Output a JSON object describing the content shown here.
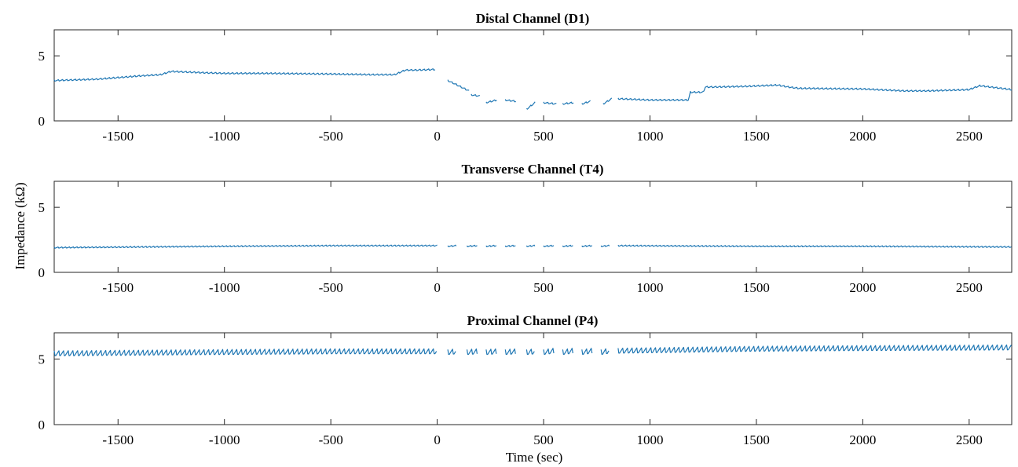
{
  "colors": {
    "trace": "#1f77b4",
    "axes": "#262626"
  },
  "shared": {
    "ylabel": "Impedance (kΩ)",
    "xlabel": "Time (sec)"
  },
  "chart_data": [
    {
      "type": "line",
      "title": "Distal Channel (D1)",
      "xlim": [
        -1800,
        2700
      ],
      "ylim": [
        0,
        7
      ],
      "xticks": [
        -1500,
        -1000,
        -500,
        0,
        500,
        1000,
        1500,
        2000,
        2500
      ],
      "yticks": [
        0,
        5
      ],
      "grid": false,
      "series": [
        {
          "segments": [
            {
              "x": [
                -1800,
                -1600,
                -1400,
                -1300,
                -1250,
                -1100,
                -1000,
                -800,
                -500,
                -300,
                -200,
                -150,
                -100,
                -10
              ],
              "y": [
                3.1,
                3.2,
                3.45,
                3.55,
                3.8,
                3.7,
                3.65,
                3.65,
                3.6,
                3.55,
                3.55,
                3.9,
                3.9,
                3.95
              ]
            },
            {
              "x": [
                50,
                150
              ],
              "y": [
                3.1,
                2.3
              ]
            },
            {
              "x": [
                160,
                200
              ],
              "y": [
                2.0,
                1.9
              ]
            },
            {
              "x": [
                230,
                280
              ],
              "y": [
                1.4,
                1.6
              ]
            },
            {
              "x": [
                320,
                370
              ],
              "y": [
                1.6,
                1.5
              ]
            },
            {
              "x": [
                420,
                460
              ],
              "y": [
                0.9,
                1.4
              ]
            },
            {
              "x": [
                500,
                560
              ],
              "y": [
                1.4,
                1.3
              ]
            },
            {
              "x": [
                590,
                640
              ],
              "y": [
                1.3,
                1.4
              ]
            },
            {
              "x": [
                680,
                720
              ],
              "y": [
                1.3,
                1.5
              ]
            },
            {
              "x": [
                780,
                820
              ],
              "y": [
                1.3,
                1.7
              ]
            },
            {
              "x": [
                850,
                1000,
                1180,
                1190,
                1250,
                1260,
                1300,
                1450,
                1600,
                1650,
                1700,
                2000,
                2200,
                2300,
                2500,
                2550,
                2700
              ],
              "y": [
                1.7,
                1.6,
                1.6,
                2.2,
                2.2,
                2.6,
                2.6,
                2.65,
                2.75,
                2.6,
                2.5,
                2.45,
                2.3,
                2.3,
                2.4,
                2.7,
                2.4
              ]
            }
          ],
          "oscillation": {
            "period": 20,
            "amplitude": 0.12
          }
        }
      ]
    },
    {
      "type": "line",
      "title": "Transverse Channel (T4)",
      "xlim": [
        -1800,
        2700
      ],
      "ylim": [
        0,
        7
      ],
      "xticks": [
        -1500,
        -1000,
        -500,
        0,
        500,
        1000,
        1500,
        2000,
        2500
      ],
      "yticks": [
        0,
        5
      ],
      "grid": false,
      "series": [
        {
          "segments": [
            {
              "x": [
                -1800,
                -1000,
                -500,
                0
              ],
              "y": [
                1.9,
                2.0,
                2.05,
                2.05
              ]
            },
            {
              "x": [
                50,
                90
              ],
              "y": [
                2.0,
                2.05
              ]
            },
            {
              "x": [
                140,
                190
              ],
              "y": [
                2.0,
                2.05
              ]
            },
            {
              "x": [
                230,
                280
              ],
              "y": [
                2.0,
                2.05
              ]
            },
            {
              "x": [
                320,
                370
              ],
              "y": [
                2.0,
                2.05
              ]
            },
            {
              "x": [
                420,
                460
              ],
              "y": [
                2.0,
                2.05
              ]
            },
            {
              "x": [
                500,
                550
              ],
              "y": [
                2.0,
                2.05
              ]
            },
            {
              "x": [
                590,
                640
              ],
              "y": [
                2.0,
                2.05
              ]
            },
            {
              "x": [
                680,
                730
              ],
              "y": [
                2.0,
                2.05
              ]
            },
            {
              "x": [
                770,
                810
              ],
              "y": [
                2.0,
                2.05
              ]
            },
            {
              "x": [
                850,
                1500,
                2000,
                2700
              ],
              "y": [
                2.05,
                2.0,
                2.0,
                1.95
              ]
            }
          ],
          "oscillation": {
            "period": 18,
            "amplitude": 0.1
          }
        }
      ]
    },
    {
      "type": "line",
      "title": "Proximal Channel (P4)",
      "xlim": [
        -1800,
        2700
      ],
      "ylim": [
        0,
        7
      ],
      "xticks": [
        -1500,
        -1000,
        -500,
        0,
        500,
        1000,
        1500,
        2000,
        2500
      ],
      "yticks": [
        0,
        5
      ],
      "grid": false,
      "series": [
        {
          "segments": [
            {
              "x": [
                -1800,
                -1000,
                -500,
                0
              ],
              "y": [
                5.4,
                5.5,
                5.55,
                5.55
              ]
            },
            {
              "x": [
                50,
                90
              ],
              "y": [
                5.5,
                5.55
              ]
            },
            {
              "x": [
                140,
                190
              ],
              "y": [
                5.5,
                5.55
              ]
            },
            {
              "x": [
                230,
                280
              ],
              "y": [
                5.5,
                5.55
              ]
            },
            {
              "x": [
                320,
                370
              ],
              "y": [
                5.5,
                5.55
              ]
            },
            {
              "x": [
                420,
                460
              ],
              "y": [
                5.5,
                5.55
              ]
            },
            {
              "x": [
                500,
                550
              ],
              "y": [
                5.5,
                5.6
              ]
            },
            {
              "x": [
                590,
                640
              ],
              "y": [
                5.5,
                5.6
              ]
            },
            {
              "x": [
                680,
                730
              ],
              "y": [
                5.5,
                5.6
              ]
            },
            {
              "x": [
                770,
                810
              ],
              "y": [
                5.5,
                5.6
              ]
            },
            {
              "x": [
                850,
                1500,
                2000,
                2700
              ],
              "y": [
                5.6,
                5.75,
                5.8,
                5.85
              ]
            }
          ],
          "oscillation": {
            "period": 22,
            "amplitude": 0.45
          }
        }
      ]
    }
  ]
}
